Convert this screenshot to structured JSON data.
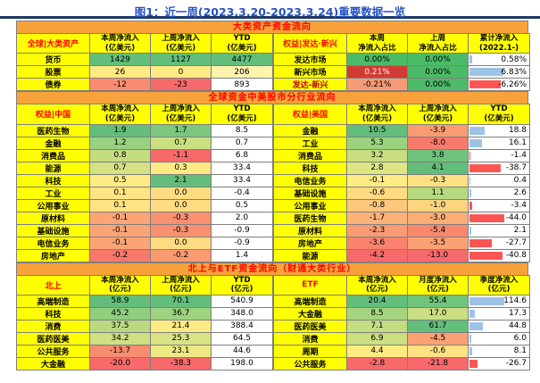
{
  "chart_data": {
    "type": "table",
    "title": "图1：近一周(2023.3.20-2023.3.24)重要数据一览",
    "accent_colors": {
      "title_blue": "#2553C4",
      "title_rule_navy": "#1F3864",
      "section_orange": "#F8A23B",
      "section_text_red": "#FF0000",
      "header_yellow": "#FFFF00",
      "scale_green": "#63BE7B",
      "scale_yellow": "#FFEB84",
      "scale_red": "#F8696B",
      "bar_positive": "#9DC3E6",
      "bar_negative": "#FF5552"
    },
    "sections": [
      {
        "header": "大类资产资金流向",
        "tables": [
          {
            "id": "global-assets",
            "corner": "全球|大类资产",
            "col_headers": [
              "本周净流入\n(亿美元)",
              "上周净流入\n(亿美元)",
              "YTD\n(亿美元)"
            ],
            "rows": [
              {
                "label": "货币",
                "cells": [
                  {
                    "v": "1429",
                    "bg": "#63BE7B"
                  },
                  {
                    "v": "1127",
                    "bg": "#63BE7B"
                  },
                  {
                    "v": "4477",
                    "bg": "#63BE7B"
                  }
                ]
              },
              {
                "label": "股票",
                "cells": [
                  {
                    "v": "26",
                    "bg": "#FFEB84"
                  },
                  {
                    "v": "0",
                    "bg": "#FFEB84"
                  },
                  {
                    "v": "206",
                    "bg": "#FFF4AE"
                  }
                ]
              },
              {
                "label": "债券",
                "cells": [
                  {
                    "v": "-12",
                    "bg": "#F98C70"
                  },
                  {
                    "v": "-23",
                    "bg": "#F8696B"
                  },
                  {
                    "v": "893"
                  }
                ]
              }
            ]
          },
          {
            "id": "developed-emerging",
            "corner": "权益|发达·新兴",
            "bar_max": 7,
            "col_headers": [
              "本周\n净流入占比",
              "上周\n净流入占比",
              "累计净流入\n(2022.1-)"
            ],
            "rows": [
              {
                "label": "发达市场",
                "cells": [
                  {
                    "v": "0.00%",
                    "bg": "#4CBB67"
                  },
                  {
                    "v": "0.00%",
                    "bg": "#4CBB67"
                  },
                  {
                    "v": "0.58%",
                    "bar": 0.58
                  }
                ]
              },
              {
                "label": "新兴市场",
                "cells": [
                  {
                    "v": "0.21%",
                    "bg": "#D23B33",
                    "fg": "#FFFFFF"
                  },
                  {
                    "v": "0.00%",
                    "bg": "#4CBB67"
                  },
                  {
                    "v": "6.83%",
                    "bar": 6.83
                  }
                ]
              },
              {
                "label": "发达-新兴",
                "label_color": "#C00000",
                "cells": [
                  {
                    "v": "-0.21%",
                    "bg": "#F79A76"
                  },
                  {
                    "v": "0.00%",
                    "bg": "#4CBB67"
                  },
                  {
                    "v": "-6.26%",
                    "bar": -6.26
                  }
                ]
              }
            ]
          }
        ]
      },
      {
        "header": "全球资金中美股市分行业流向",
        "tables": [
          {
            "id": "equity-china",
            "corner": "权益|中国",
            "col_headers": [
              "本周净流入\n(亿美元)",
              "上周净流入\n(亿美元)",
              "YTD\n(亿美元)"
            ],
            "rows": [
              {
                "label": "医药生物",
                "cells": [
                  {
                    "v": "1.9",
                    "bg": "#63BE7B"
                  },
                  {
                    "v": "1.7",
                    "bg": "#7BC77D"
                  },
                  {
                    "v": "8.5"
                  }
                ]
              },
              {
                "label": "金融",
                "cells": [
                  {
                    "v": "1.2",
                    "bg": "#98D182"
                  },
                  {
                    "v": "0.7",
                    "bg": "#C9DF82"
                  },
                  {
                    "v": "0.7"
                  }
                ]
              },
              {
                "label": "消费品",
                "cells": [
                  {
                    "v": "0.8",
                    "bg": "#C5DD81"
                  },
                  {
                    "v": "-1.1",
                    "bg": "#F8696B"
                  },
                  {
                    "v": "6.8"
                  }
                ]
              },
              {
                "label": "能源",
                "cells": [
                  {
                    "v": "0.7",
                    "bg": "#D4E283"
                  },
                  {
                    "v": "0.3",
                    "bg": "#FFE984"
                  },
                  {
                    "v": "33.4"
                  }
                ]
              },
              {
                "label": "科技",
                "cells": [
                  {
                    "v": "0.5",
                    "bg": "#FFEB84"
                  },
                  {
                    "v": "2.1",
                    "bg": "#63BE7B"
                  },
                  {
                    "v": "33.4"
                  }
                ]
              },
              {
                "label": "工业",
                "cells": [
                  {
                    "v": "0.1",
                    "bg": "#FFE483"
                  },
                  {
                    "v": "0.0",
                    "bg": "#FFDC81"
                  },
                  {
                    "v": "-0.4"
                  }
                ]
              },
              {
                "label": "公用事业",
                "cells": [
                  {
                    "v": "0.1",
                    "bg": "#FFE483"
                  },
                  {
                    "v": "0.0",
                    "bg": "#FFDC81"
                  },
                  {
                    "v": "0.5"
                  }
                ]
              },
              {
                "label": "原材料",
                "cells": [
                  {
                    "v": "-0.1",
                    "bg": "#FBA476"
                  },
                  {
                    "v": "-0.3",
                    "bg": "#F9906F"
                  },
                  {
                    "v": "2.0"
                  }
                ]
              },
              {
                "label": "基础设施",
                "cells": [
                  {
                    "v": "-0.1",
                    "bg": "#FBA476"
                  },
                  {
                    "v": "-0.3",
                    "bg": "#F9906F"
                  },
                  {
                    "v": "-0.9"
                  }
                ]
              },
              {
                "label": "电信业务",
                "cells": [
                  {
                    "v": "-0.1",
                    "bg": "#FBA476"
                  },
                  {
                    "v": "0.0",
                    "bg": "#FFDC81"
                  },
                  {
                    "v": "-0.9"
                  }
                ]
              },
              {
                "label": "房地产",
                "cells": [
                  {
                    "v": "-0.2",
                    "bg": "#F8786C"
                  },
                  {
                    "v": "-0.2",
                    "bg": "#FB9B72"
                  },
                  {
                    "v": "1.4"
                  }
                ]
              }
            ]
          },
          {
            "id": "equity-us",
            "corner": "权益|美国",
            "bar_max": 44,
            "col_headers": [
              "本周净流入\n(亿美元)",
              "上周净流入\n(亿美元)",
              "YTD\n(亿美元)"
            ],
            "rows": [
              {
                "label": "金融",
                "cells": [
                  {
                    "v": "10.5",
                    "bg": "#63BE7B"
                  },
                  {
                    "v": "-3.9",
                    "bg": "#F99B72"
                  },
                  {
                    "v": "18.8",
                    "bar": 18.8
                  }
                ]
              },
              {
                "label": "工业",
                "cells": [
                  {
                    "v": "5.3",
                    "bg": "#9AD27F"
                  },
                  {
                    "v": "-8.0",
                    "bg": "#F87A6C"
                  },
                  {
                    "v": "16.1",
                    "bar": 16.1
                  }
                ]
              },
              {
                "label": "消费品",
                "cells": [
                  {
                    "v": "3.2",
                    "bg": "#C7DE81"
                  },
                  {
                    "v": "3.8",
                    "bg": "#6FC37C"
                  },
                  {
                    "v": "-1.4",
                    "bar": -1.4
                  }
                ]
              },
              {
                "label": "科技",
                "cells": [
                  {
                    "v": "2.8",
                    "bg": "#DDE683"
                  },
                  {
                    "v": "4.1",
                    "bg": "#63BE7B"
                  },
                  {
                    "v": "-38.7",
                    "bar": -38.7
                  }
                ]
              },
              {
                "label": "电信业务",
                "cells": [
                  {
                    "v": "-0.1",
                    "bg": "#FFEB84"
                  },
                  {
                    "v": "-0.3",
                    "bg": "#FFE182"
                  },
                  {
                    "v": "0.4",
                    "bar": 0.4
                  }
                ]
              },
              {
                "label": "基础设施",
                "cells": [
                  {
                    "v": "-0.6",
                    "bg": "#FFDA80"
                  },
                  {
                    "v": "1.1",
                    "bg": "#B5D980"
                  },
                  {
                    "v": "2.6",
                    "bar": 2.6
                  }
                ]
              },
              {
                "label": "公用事业",
                "cells": [
                  {
                    "v": "-0.8",
                    "bg": "#FEC77C"
                  },
                  {
                    "v": "-1.0",
                    "bg": "#FED57F"
                  },
                  {
                    "v": "-3.4",
                    "bar": -3.4
                  }
                ]
              },
              {
                "label": "医药生物",
                "cells": [
                  {
                    "v": "-1.7",
                    "bg": "#FCB278"
                  },
                  {
                    "v": "-3.0",
                    "bg": "#FBAD76"
                  },
                  {
                    "v": "-44.0",
                    "bar": -44.0
                  }
                ]
              },
              {
                "label": "原材料",
                "cells": [
                  {
                    "v": "-2.3",
                    "bg": "#FA9B73"
                  },
                  {
                    "v": "-5.4",
                    "bg": "#F9886E"
                  },
                  {
                    "v": "2.1",
                    "bar": 2.1
                  }
                ]
              },
              {
                "label": "房地产",
                "cells": [
                  {
                    "v": "-3.6",
                    "bg": "#F9836E"
                  },
                  {
                    "v": "-3.5",
                    "bg": "#FAA274"
                  },
                  {
                    "v": "-27.7",
                    "bar": -27.7
                  }
                ]
              },
              {
                "label": "能源",
                "cells": [
                  {
                    "v": "-4.2",
                    "bg": "#F8696B"
                  },
                  {
                    "v": "-13.0",
                    "bg": "#F8696B"
                  },
                  {
                    "v": "-40.8",
                    "bar": -40.8
                  }
                ]
              }
            ]
          }
        ]
      },
      {
        "header": "北上与ETF资金流向（财通大类行业）",
        "tables": [
          {
            "id": "northbound",
            "corner": "北上",
            "col_headers": [
              "本周净流入\n(亿元)",
              "上周净流入\n(亿元)",
              "YTD\n(亿元)"
            ],
            "rows": [
              {
                "label": "高端制造",
                "cells": [
                  {
                    "v": "58.9",
                    "bg": "#63BE7B"
                  },
                  {
                    "v": "70.1",
                    "bg": "#63BE7B"
                  },
                  {
                    "v": "540.9"
                  }
                ]
              },
              {
                "label": "科技",
                "cells": [
                  {
                    "v": "45.2",
                    "bg": "#8FCF7E"
                  },
                  {
                    "v": "36.7",
                    "bg": "#9ED37F"
                  },
                  {
                    "v": "348.0"
                  }
                ]
              },
              {
                "label": "消费",
                "cells": [
                  {
                    "v": "37.5",
                    "bg": "#B9DA80"
                  },
                  {
                    "v": "21.4",
                    "bg": "#FFEB84"
                  },
                  {
                    "v": "388.4"
                  }
                ]
              },
              {
                "label": "医药医美",
                "cells": [
                  {
                    "v": "34.2",
                    "bg": "#CFE082"
                  },
                  {
                    "v": "25.3",
                    "bg": "#D9E383"
                  },
                  {
                    "v": "64.5"
                  }
                ]
              },
              {
                "label": "公共服务",
                "cells": [
                  {
                    "v": "-13.7",
                    "bg": "#F98D6F"
                  },
                  {
                    "v": "23.1",
                    "bg": "#ECE985"
                  },
                  {
                    "v": "44.6"
                  }
                ]
              },
              {
                "label": "大金融",
                "cells": [
                  {
                    "v": "-20.0",
                    "bg": "#F8696B"
                  },
                  {
                    "v": "-38.3",
                    "bg": "#F8696B"
                  },
                  {
                    "v": "198.0"
                  }
                ]
              }
            ]
          },
          {
            "id": "etf",
            "corner": "ETF",
            "bar_max": 115,
            "col_headers": [
              "本周净流入\n(亿元)",
              "月度净流入\n(亿元)",
              "季度净流入\n(亿元)"
            ],
            "rows": [
              {
                "label": "高端制造",
                "cells": [
                  {
                    "v": "20.4",
                    "bg": "#63BE7B"
                  },
                  {
                    "v": "55.4",
                    "bg": "#70C47C"
                  },
                  {
                    "v": "114.6",
                    "bar": 114.6
                  }
                ]
              },
              {
                "label": "大金融",
                "cells": [
                  {
                    "v": "8.5",
                    "bg": "#A6D580"
                  },
                  {
                    "v": "17.0",
                    "bg": "#C9DF82"
                  },
                  {
                    "v": "17.3",
                    "bar": 17.3
                  }
                ]
              },
              {
                "label": "医药医美",
                "cells": [
                  {
                    "v": "7.1",
                    "bg": "#C3DD81"
                  },
                  {
                    "v": "61.7",
                    "bg": "#63BE7B"
                  },
                  {
                    "v": "44.8",
                    "bar": 44.8
                  }
                ]
              },
              {
                "label": "消费",
                "cells": [
                  {
                    "v": "6.9",
                    "bg": "#CCDF82"
                  },
                  {
                    "v": "-4.5",
                    "bg": "#FBA174"
                  },
                  {
                    "v": "6.0",
                    "bar": 6.0
                  }
                ]
              },
              {
                "label": "周期",
                "cells": [
                  {
                    "v": "4.4",
                    "bg": "#FFEB84"
                  },
                  {
                    "v": "-0.6",
                    "bg": "#FFE083"
                  },
                  {
                    "v": "8.1",
                    "bar": 8.1
                  }
                ]
              },
              {
                "label": "公共服务",
                "cells": [
                  {
                    "v": "-2.8",
                    "bg": "#F8696B"
                  },
                  {
                    "v": "-21.8",
                    "bg": "#F8696B"
                  },
                  {
                    "v": "-26.7",
                    "bar": -26.7
                  }
                ]
              }
            ]
          }
        ]
      }
    ]
  }
}
